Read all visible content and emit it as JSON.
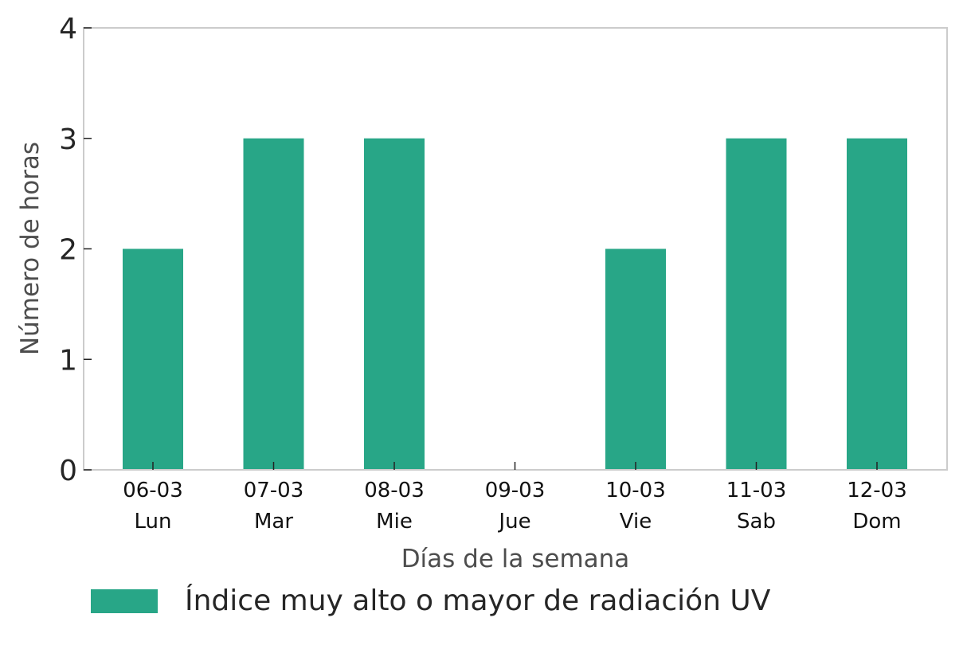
{
  "chart_data": {
    "type": "bar",
    "categories": [
      {
        "date": "06-03",
        "day": "Lun"
      },
      {
        "date": "07-03",
        "day": "Mar"
      },
      {
        "date": "08-03",
        "day": "Mie"
      },
      {
        "date": "09-03",
        "day": "Jue"
      },
      {
        "date": "10-03",
        "day": "Vie"
      },
      {
        "date": "11-03",
        "day": "Sab"
      },
      {
        "date": "12-03",
        "day": "Dom"
      }
    ],
    "series": [
      {
        "name": "Índice muy alto o mayor de radiación UV",
        "values": [
          2,
          3,
          3,
          0,
          2,
          3,
          3
        ],
        "color": "#28a687"
      }
    ],
    "xlabel": "Días de la semana",
    "ylabel": "Número de horas",
    "ylim": [
      0,
      4
    ],
    "yticks": [
      0,
      1,
      2,
      3,
      4
    ],
    "grid": false,
    "legend_position": "bottom"
  }
}
